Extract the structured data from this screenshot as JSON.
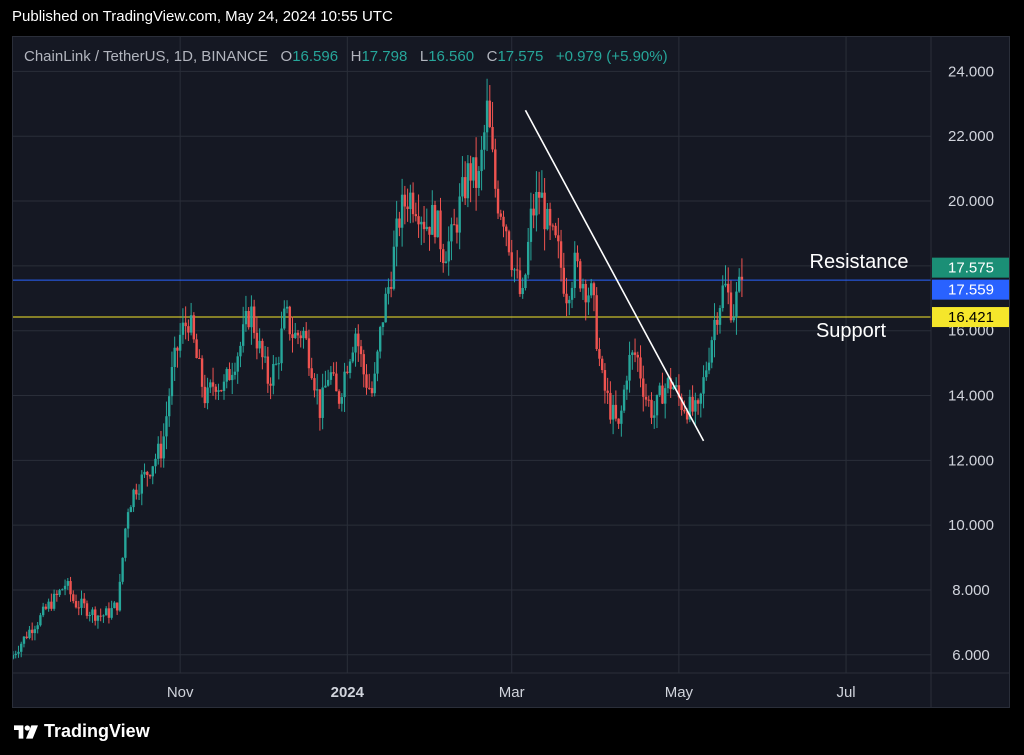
{
  "header": {
    "published": "Published on TradingView.com, May 24, 2024 10:55 UTC"
  },
  "legend": {
    "symbol": "ChainLink / TetherUS, 1D, BINANCE",
    "o_label": "O",
    "o": "16.596",
    "h_label": "H",
    "h": "17.798",
    "l_label": "L",
    "l": "16.560",
    "c_label": "C",
    "c": "17.575",
    "change": "+0.979 (+5.90%)"
  },
  "footer": {
    "brand": "TradingView"
  },
  "colors": {
    "up": "#26a69a",
    "down": "#ef5350",
    "background": "#151823",
    "grid": "#2a2e39",
    "resistance_line": "#2962ff",
    "support_line": "#f5e62b",
    "trendline": "#ffffff",
    "tag_last": "#1b8f76",
    "tag_resistance": "#2962ff",
    "tag_support": "#f5e62b"
  },
  "chart_data": {
    "type": "candlestick",
    "title": "ChainLink / TetherUS, 1D, BINANCE",
    "y_axis": {
      "range": [
        5.5,
        25.0
      ],
      "ticks": [
        "24.000",
        "22.000",
        "20.000",
        "18.000",
        "16.000",
        "14.000",
        "12.000",
        "10.000",
        "8.000",
        "6.000"
      ],
      "tick_values": [
        24,
        22,
        20,
        18,
        16,
        14,
        12,
        10,
        8,
        6
      ]
    },
    "x_axis": {
      "range": [
        "2023-09-01",
        "2024-08-01"
      ],
      "ticks": [
        {
          "label": "Nov",
          "date": "2023-11-01",
          "bold": false
        },
        {
          "label": "2024",
          "date": "2024-01-01",
          "bold": true
        },
        {
          "label": "Mar",
          "date": "2024-03-01",
          "bold": false
        },
        {
          "label": "May",
          "date": "2024-05-01",
          "bold": false
        },
        {
          "label": "Jul",
          "date": "2024-07-01",
          "bold": false
        }
      ]
    },
    "grid": true,
    "series_start": "2023-09-01",
    "closes": [
      6.0,
      6.4,
      6.8,
      7.1,
      7.5,
      7.8,
      8.2,
      7.6,
      7.5,
      7.3,
      7.2,
      7.3,
      7.6,
      10.5,
      11.2,
      11.5,
      12.0,
      12.4,
      14.5,
      15.8,
      16.4,
      15.0,
      13.8,
      14.5,
      14.2,
      15.0,
      15.6,
      16.7,
      15.5,
      14.5,
      14.9,
      16.5,
      15.8,
      16.0,
      15.0,
      13.5,
      14.8,
      13.8,
      15.0,
      16.0,
      14.6,
      14.0,
      16.3,
      17.7,
      19.5,
      20.2,
      20.0,
      19.3,
      19.5,
      18.5,
      18.8,
      20.0,
      21.0,
      20.5,
      22.8,
      20.2,
      19.5,
      18.0,
      16.8,
      19.5,
      20.3,
      19.0,
      18.5,
      17.2,
      18.0,
      17.5,
      17.0,
      14.5,
      13.6,
      12.9,
      15.0,
      15.3,
      14.0,
      13.4,
      14.2,
      14.4,
      13.8,
      13.6,
      13.4,
      15.0,
      16.5,
      17.4,
      16.6,
      17.575
    ],
    "levels": [
      {
        "name": "Resistance",
        "label": "17.559",
        "value": 17.559
      },
      {
        "name": "Support",
        "label": "16.421",
        "value": 16.421
      }
    ],
    "last_price": {
      "label": "17.575",
      "value": 17.575
    },
    "annotations": [
      {
        "text": "Resistance"
      },
      {
        "text": "Support"
      }
    ],
    "trendline": [
      {
        "date": "2024-03-06",
        "value": 22.8
      },
      {
        "date": "2024-05-10",
        "value": 12.6
      }
    ]
  }
}
